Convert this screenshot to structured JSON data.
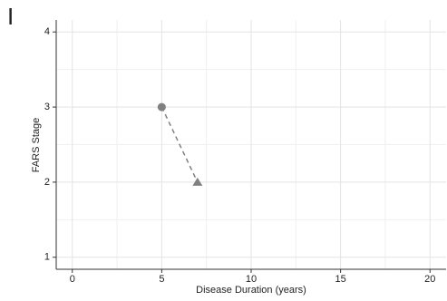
{
  "chart_data": {
    "type": "line",
    "panel_label": "I",
    "xlabel": "Disease Duration (years)",
    "ylabel": "FARS Stage",
    "x": [
      5,
      7
    ],
    "series": [
      {
        "color": "#808080",
        "values": [
          3,
          2
        ],
        "markers": [
          "circle",
          "triangle"
        ],
        "dashed": true
      }
    ],
    "xlim": [
      -0.9,
      20.9
    ],
    "ylim": [
      0.84,
      4.16
    ],
    "xticks": [
      0,
      5,
      10,
      15,
      20
    ],
    "yticks": [
      1,
      2,
      3,
      4
    ],
    "x_minor_grid": [
      2.5,
      7.5,
      12.5,
      17.5
    ],
    "y_minor_grid": [
      1.5,
      2.5,
      3.5
    ],
    "grid": true
  }
}
